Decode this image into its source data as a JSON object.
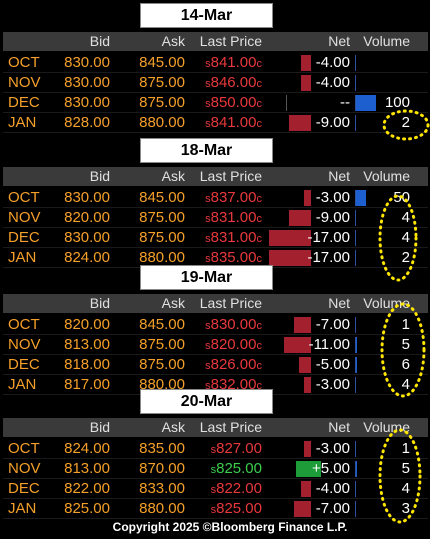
{
  "sections": [
    {
      "date": "14-Mar",
      "header": {
        "bid": "Bid",
        "ask": "Ask",
        "last": "Last Price",
        "net": "Net",
        "volume": "Volume"
      },
      "rows": [
        {
          "month": "OCT",
          "bid": "830.00",
          "ask": "845.00",
          "last_prefix": "s",
          "last": "841.00",
          "last_suffix": "c",
          "net": "-4.00"
        },
        {
          "month": "NOV",
          "bid": "830.00",
          "ask": "875.00",
          "last_prefix": "s",
          "last": "846.00",
          "last_suffix": "c",
          "net": "-4.00"
        },
        {
          "month": "DEC",
          "bid": "830.00",
          "ask": "875.00",
          "last_prefix": "s",
          "last": "850.00",
          "last_suffix": "c",
          "net": "--",
          "volume": "100"
        },
        {
          "month": "JAN",
          "bid": "828.00",
          "ask": "880.00",
          "last_prefix": "s",
          "last": "841.00",
          "last_suffix": "c",
          "net": "-9.00",
          "volume": "2"
        }
      ]
    },
    {
      "date": "18-Mar",
      "header": {
        "bid": "Bid",
        "ask": "Ask",
        "last": "Last Price",
        "net": "Net",
        "volume": "Volume"
      },
      "rows": [
        {
          "month": "OCT",
          "bid": "830.00",
          "ask": "845.00",
          "last_prefix": "s",
          "last": "837.00",
          "last_suffix": "c",
          "net": "-3.00",
          "volume": "50"
        },
        {
          "month": "NOV",
          "bid": "820.00",
          "ask": "875.00",
          "last_prefix": "s",
          "last": "831.00",
          "last_suffix": "c",
          "net": "-9.00",
          "volume": "4"
        },
        {
          "month": "DEC",
          "bid": "830.00",
          "ask": "875.00",
          "last_prefix": "s",
          "last": "831.00",
          "last_suffix": "c",
          "net": "-17.00",
          "volume": "4"
        },
        {
          "month": "JAN",
          "bid": "824.00",
          "ask": "880.00",
          "last_prefix": "s",
          "last": "835.00",
          "last_suffix": "c",
          "net": "-17.00",
          "volume": "2"
        }
      ]
    },
    {
      "date": "19-Mar",
      "header": {
        "bid": "Bid",
        "ask": "Ask",
        "last": "Last Price",
        "net": "Net",
        "volume": "Volume"
      },
      "rows": [
        {
          "month": "OCT",
          "bid": "820.00",
          "ask": "845.00",
          "last_prefix": "s",
          "last": "830.00",
          "last_suffix": "c",
          "net": "-7.00",
          "volume": "1"
        },
        {
          "month": "NOV",
          "bid": "813.00",
          "ask": "875.00",
          "last_prefix": "s",
          "last": "820.00",
          "last_suffix": "c",
          "net": "-11.00",
          "volume": "5"
        },
        {
          "month": "DEC",
          "bid": "818.00",
          "ask": "875.00",
          "last_prefix": "s",
          "last": "826.00",
          "last_suffix": "c",
          "net": "-5.00",
          "volume": "6"
        },
        {
          "month": "JAN",
          "bid": "817.00",
          "ask": "880.00",
          "last_prefix": "s",
          "last": "832.00",
          "last_suffix": "c",
          "net": "-3.00",
          "volume": "4"
        }
      ]
    },
    {
      "date": "20-Mar",
      "header": {
        "bid": "Bid",
        "ask": "Ask",
        "last": "Last Price",
        "net": "Net",
        "volume": "Volume"
      },
      "rows": [
        {
          "month": "OCT",
          "bid": "824.00",
          "ask": "835.00",
          "last_prefix": "s",
          "last": "827.00",
          "net": "-3.00",
          "volume": "1"
        },
        {
          "month": "NOV",
          "bid": "813.00",
          "ask": "870.00",
          "last_prefix": "s",
          "last": "825.00",
          "net": "+5.00",
          "volume": "5"
        },
        {
          "month": "DEC",
          "bid": "822.00",
          "ask": "833.00",
          "last_prefix": "s",
          "last": "822.00",
          "net": "-4.00",
          "volume": "4"
        },
        {
          "month": "JAN",
          "bid": "825.00",
          "ask": "880.00",
          "last_prefix": "s",
          "last": "825.00",
          "net": "-7.00",
          "volume": "3"
        }
      ]
    }
  ],
  "footer": "Copyright 2025 ©Bloomberg Finance L.P."
}
